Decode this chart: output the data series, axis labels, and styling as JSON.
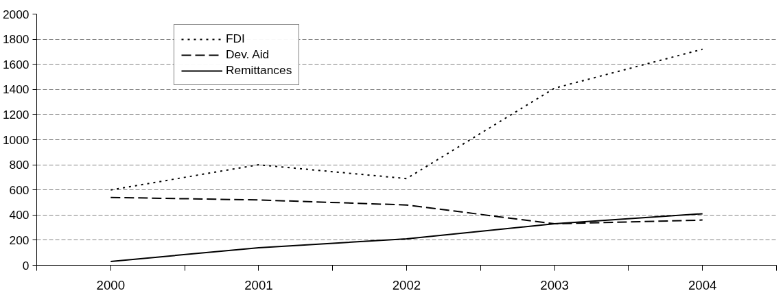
{
  "chart_data": {
    "type": "line",
    "categories": [
      "2000",
      "2001",
      "2002",
      "2003",
      "2004"
    ],
    "series": [
      {
        "name": "FDI",
        "color": "#000000",
        "line_style": "dotted",
        "values": [
          600,
          800,
          690,
          1410,
          1720
        ]
      },
      {
        "name": "Dev. Aid",
        "color": "#000000",
        "line_style": "dashed",
        "values": [
          540,
          520,
          480,
          330,
          360
        ]
      },
      {
        "name": "Remittances",
        "color": "#000000",
        "line_style": "solid",
        "values": [
          30,
          140,
          210,
          330,
          410
        ]
      }
    ],
    "ylim": [
      0,
      2000
    ],
    "yticks": [
      0,
      200,
      400,
      600,
      800,
      1000,
      1200,
      1400,
      1600,
      1800,
      2000
    ],
    "grid": "y",
    "legend": "top left",
    "marker": "none"
  }
}
